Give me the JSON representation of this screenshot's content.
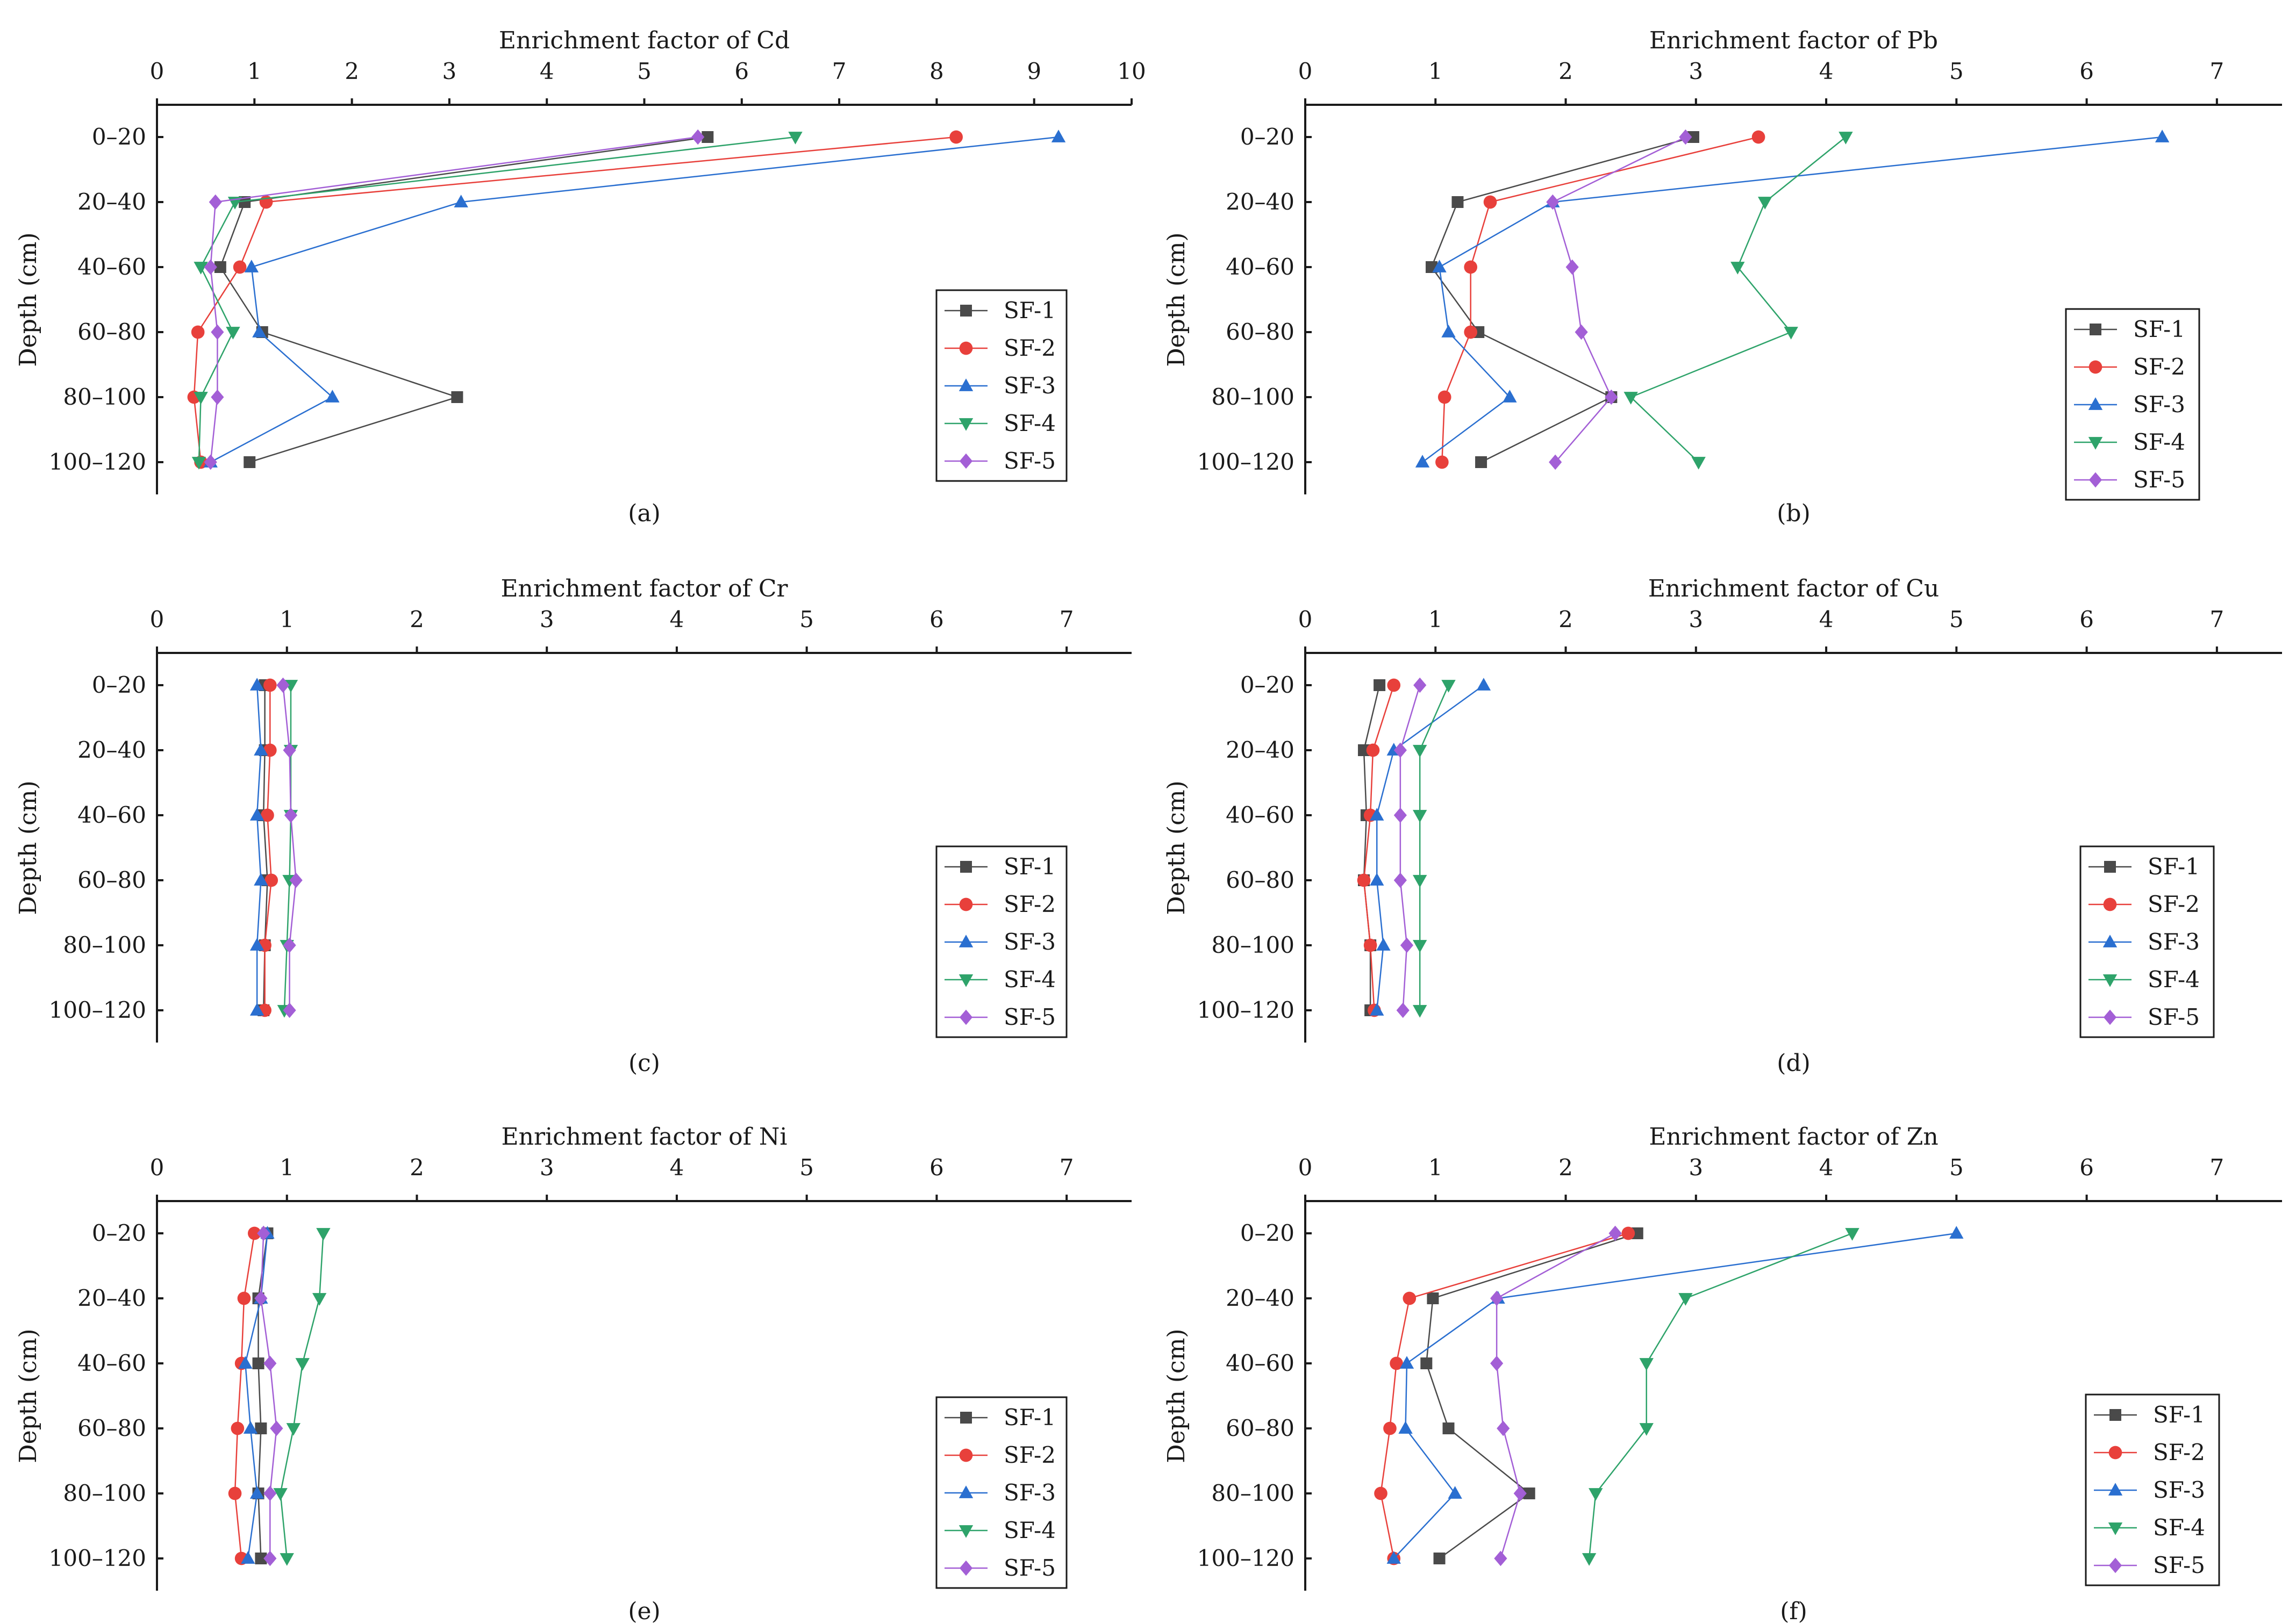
{
  "colors": {
    "SF-1": "#4a4a4a",
    "SF-2": "#e8403b",
    "SF-3": "#2a6fd0",
    "SF-4": "#2ea36a",
    "SF-5": "#a35fd6"
  },
  "markers": {
    "SF-1": "square",
    "SF-2": "circle",
    "SF-3": "triangle-up",
    "SF-4": "triangle-down",
    "SF-5": "diamond"
  },
  "chart_data": [
    {
      "type": "line",
      "title": "Enrichment factor of Cd",
      "caption": "(a)",
      "ylabel": "Depth (cm)",
      "xlim": [
        0,
        10
      ],
      "xticks": [
        0,
        1,
        2,
        3,
        4,
        5,
        6,
        7,
        8,
        9,
        10
      ],
      "categories": [
        "0–20",
        "20–40",
        "40–60",
        "60–80",
        "80–100",
        "100–120"
      ],
      "legend_position": "right",
      "series": [
        {
          "name": "SF-1",
          "values": [
            5.65,
            0.9,
            0.65,
            1.08,
            3.08,
            0.95
          ]
        },
        {
          "name": "SF-2",
          "values": [
            8.2,
            1.12,
            0.85,
            0.42,
            0.38,
            0.45
          ]
        },
        {
          "name": "SF-3",
          "values": [
            9.25,
            3.12,
            0.97,
            1.05,
            1.8,
            0.55
          ]
        },
        {
          "name": "SF-4",
          "values": [
            6.55,
            0.8,
            0.45,
            0.78,
            0.45,
            0.43
          ]
        },
        {
          "name": "SF-5",
          "values": [
            5.55,
            0.6,
            0.55,
            0.62,
            0.62,
            0.55
          ]
        }
      ]
    },
    {
      "type": "line",
      "title": "Enrichment factor of Pb",
      "caption": "(b)",
      "ylabel": "Depth (cm)",
      "xlim": [
        0,
        7.5
      ],
      "xticks": [
        0,
        1,
        2,
        3,
        4,
        5,
        6,
        7
      ],
      "categories": [
        "0–20",
        "20–40",
        "40–60",
        "60–80",
        "80–100",
        "100–120"
      ],
      "legend_position": "right",
      "series": [
        {
          "name": "SF-1",
          "values": [
            2.98,
            1.17,
            0.97,
            1.33,
            2.35,
            1.35
          ]
        },
        {
          "name": "SF-2",
          "values": [
            3.48,
            1.42,
            1.27,
            1.27,
            1.07,
            1.05
          ]
        },
        {
          "name": "SF-3",
          "values": [
            6.58,
            1.9,
            1.03,
            1.1,
            1.57,
            0.9
          ]
        },
        {
          "name": "SF-4",
          "values": [
            4.15,
            3.53,
            3.32,
            3.73,
            2.5,
            3.02
          ]
        },
        {
          "name": "SF-5",
          "values": [
            2.92,
            1.9,
            2.05,
            2.12,
            2.35,
            1.92
          ]
        }
      ]
    },
    {
      "type": "line",
      "title": "Enrichment factor of Cr",
      "caption": "(c)",
      "ylabel": "Depth (cm)",
      "xlim": [
        0,
        7.5
      ],
      "xticks": [
        0,
        1,
        2,
        3,
        4,
        5,
        6,
        7
      ],
      "categories": [
        "0–20",
        "20–40",
        "40–60",
        "60–80",
        "80–100",
        "100–120"
      ],
      "legend_position": "right",
      "series": [
        {
          "name": "SF-1",
          "values": [
            0.83,
            0.83,
            0.82,
            0.85,
            0.83,
            0.82
          ]
        },
        {
          "name": "SF-2",
          "values": [
            0.87,
            0.87,
            0.85,
            0.88,
            0.83,
            0.83
          ]
        },
        {
          "name": "SF-3",
          "values": [
            0.77,
            0.8,
            0.77,
            0.8,
            0.77,
            0.77
          ]
        },
        {
          "name": "SF-4",
          "values": [
            1.03,
            1.03,
            1.03,
            1.02,
            1.0,
            0.98
          ]
        },
        {
          "name": "SF-5",
          "values": [
            0.97,
            1.02,
            1.03,
            1.07,
            1.02,
            1.02
          ]
        }
      ]
    },
    {
      "type": "line",
      "title": "Enrichment factor of Cu",
      "caption": "(d)",
      "ylabel": "Depth (cm)",
      "xlim": [
        0,
        7.5
      ],
      "xticks": [
        0,
        1,
        2,
        3,
        4,
        5,
        6,
        7
      ],
      "categories": [
        "0–20",
        "20–40",
        "40–60",
        "60–80",
        "80–100",
        "100–120"
      ],
      "legend_position": "right",
      "series": [
        {
          "name": "SF-1",
          "values": [
            0.57,
            0.45,
            0.47,
            0.45,
            0.5,
            0.5
          ]
        },
        {
          "name": "SF-2",
          "values": [
            0.68,
            0.52,
            0.5,
            0.45,
            0.5,
            0.53
          ]
        },
        {
          "name": "SF-3",
          "values": [
            1.37,
            0.68,
            0.55,
            0.55,
            0.6,
            0.55
          ]
        },
        {
          "name": "SF-4",
          "values": [
            1.1,
            0.88,
            0.88,
            0.88,
            0.88,
            0.88
          ]
        },
        {
          "name": "SF-5",
          "values": [
            0.88,
            0.73,
            0.73,
            0.73,
            0.78,
            0.75
          ]
        }
      ]
    },
    {
      "type": "line",
      "title": "Enrichment factor of Ni",
      "caption": "(e)",
      "ylabel": "Depth (cm)",
      "xlim": [
        0,
        7.5
      ],
      "xticks": [
        0,
        1,
        2,
        3,
        4,
        5,
        6,
        7
      ],
      "categories": [
        "0–20",
        "20–40",
        "40–60",
        "60–80",
        "80–100",
        "100–120"
      ],
      "legend_position": "right",
      "series": [
        {
          "name": "SF-1",
          "values": [
            0.85,
            0.78,
            0.78,
            0.8,
            0.78,
            0.8
          ]
        },
        {
          "name": "SF-2",
          "values": [
            0.75,
            0.67,
            0.65,
            0.62,
            0.6,
            0.65
          ]
        },
        {
          "name": "SF-3",
          "values": [
            0.85,
            0.8,
            0.68,
            0.72,
            0.77,
            0.7
          ]
        },
        {
          "name": "SF-4",
          "values": [
            1.28,
            1.25,
            1.12,
            1.05,
            0.95,
            1.0
          ]
        },
        {
          "name": "SF-5",
          "values": [
            0.82,
            0.8,
            0.87,
            0.92,
            0.87,
            0.87
          ]
        }
      ]
    },
    {
      "type": "line",
      "title": "Enrichment factor of Zn",
      "caption": "(f)",
      "ylabel": "Depth (cm)",
      "xlim": [
        0,
        7.5
      ],
      "xticks": [
        0,
        1,
        2,
        3,
        4,
        5,
        6,
        7
      ],
      "categories": [
        "0–20",
        "20–40",
        "40–60",
        "60–80",
        "80–100",
        "100–120"
      ],
      "legend_position": "right",
      "series": [
        {
          "name": "SF-1",
          "values": [
            2.55,
            0.98,
            0.93,
            1.1,
            1.72,
            1.03
          ]
        },
        {
          "name": "SF-2",
          "values": [
            2.48,
            0.8,
            0.7,
            0.65,
            0.58,
            0.68
          ]
        },
        {
          "name": "SF-3",
          "values": [
            5.0,
            1.48,
            0.78,
            0.77,
            1.15,
            0.68
          ]
        },
        {
          "name": "SF-4",
          "values": [
            4.2,
            2.92,
            2.62,
            2.62,
            2.23,
            2.18
          ]
        },
        {
          "name": "SF-5",
          "values": [
            2.38,
            1.47,
            1.47,
            1.52,
            1.65,
            1.5
          ]
        }
      ]
    }
  ]
}
